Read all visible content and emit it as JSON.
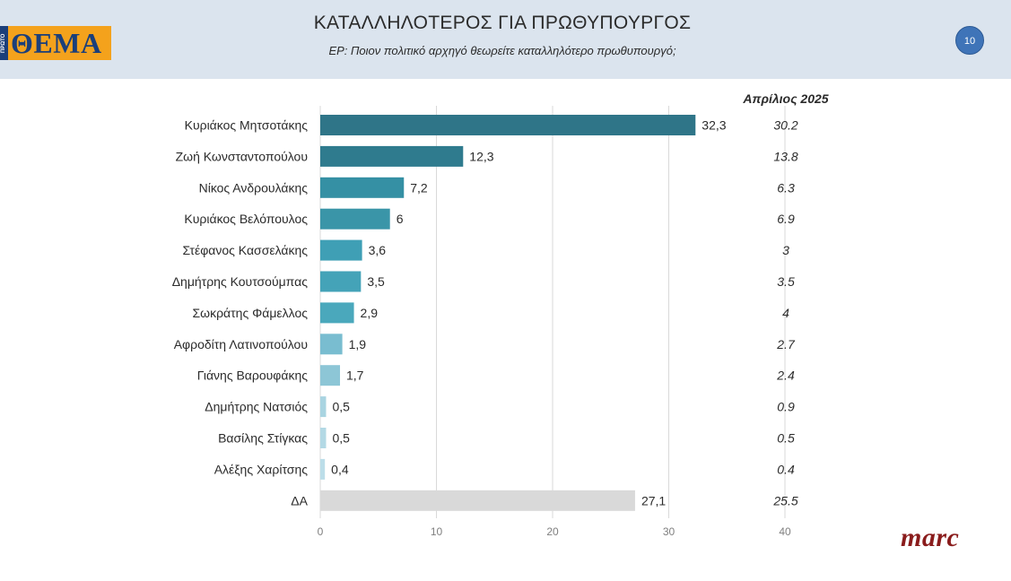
{
  "header": {
    "logo_text": "ΘΕΜΑ",
    "logo_side_text": "ΠΡΩΤΟ",
    "title": "ΚΑΤΑΛΛΗΛΟΤΕΡΟΣ ΓΙΑ ΠΡΩΘΥΠΟΥΡΓΟΣ",
    "subtitle": "ΕΡ: Ποιον πολιτικό αρχηγό θεωρείτε καταλληλότερο  πρωθυπουργό;",
    "page_number": "10"
  },
  "footer": {
    "brand": "marc"
  },
  "colors": {
    "header_bg": "#dbe4ee",
    "logo_bg": "#f4a21c",
    "logo_text": "#1b3f7a",
    "page_badge": "#3f74b8",
    "brand": "#8a1c1c",
    "grid": "#d9d9d9",
    "da_bar": "#d9d9d9"
  },
  "chart_data": {
    "type": "bar",
    "orientation": "horizontal",
    "categories": [
      "Κυριάκος Μητσοτάκης",
      "Ζωή Κωνσταντοπούλου",
      "Νίκος Ανδρουλάκης",
      "Κυριάκος Βελόπουλος",
      "Στέφανος Κασσελάκης",
      "Δημήτρης Κουτσούμπας",
      "Σωκράτης Φάμελλος",
      "Αφροδίτη Λατινοπούλου",
      "Γιάνης Βαρουφάκης",
      "Δημήτρης Νατσιός",
      "Βασίλης Στίγκας",
      "Αλέξης Χαρίτσης",
      "ΔΑ"
    ],
    "values": [
      32.3,
      12.3,
      7.2,
      6,
      3.6,
      3.5,
      2.9,
      1.9,
      1.7,
      0.5,
      0.5,
      0.4,
      27.1
    ],
    "value_labels": [
      "32,3",
      "12,3",
      "7,2",
      "6",
      "3,6",
      "3,5",
      "2,9",
      "1,9",
      "1,7",
      "0,5",
      "0,5",
      "0,4",
      "27,1"
    ],
    "bar_colors": [
      "#2f7588",
      "#2f7b8e",
      "#3590a4",
      "#3a95a8",
      "#3f9fb5",
      "#44a3b8",
      "#4aa8bc",
      "#79bdd0",
      "#8dc6d6",
      "#a9d4e1",
      "#b3d9e5",
      "#bcdee9",
      "#d9d9d9"
    ],
    "comparison_series": {
      "name": "Απρίλιος 2025",
      "values": [
        "30.2",
        "13.8",
        "6.3",
        "6.9",
        "3",
        "3.5",
        "4",
        "2.7",
        "2.4",
        "0.9",
        "0.5",
        "0.4",
        "25.5"
      ]
    },
    "xlim": [
      0,
      40
    ],
    "xticks": [
      "0",
      "10",
      "20",
      "30",
      "40"
    ],
    "grid": true,
    "title": "ΚΑΤΑΛΛΗΛΟΤΕΡΟΣ ΓΙΑ ΠΡΩΘΥΠΟΥΡΓΟΣ",
    "xlabel": "",
    "ylabel": ""
  }
}
